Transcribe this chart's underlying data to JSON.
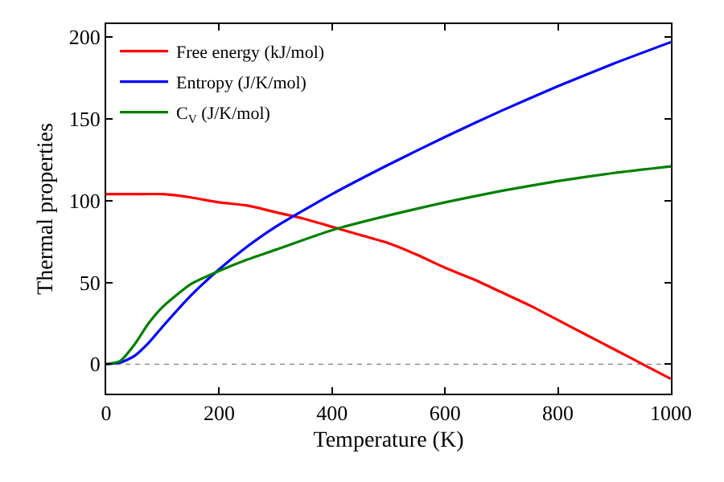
{
  "chart_data": {
    "type": "line",
    "xlabel": "Temperature (K)",
    "ylabel": "Thermal properties",
    "xlim": [
      0,
      1000
    ],
    "ylim": [
      -18,
      208
    ],
    "xticks": [
      0,
      200,
      400,
      600,
      800,
      1000
    ],
    "yticks": [
      0,
      50,
      100,
      150,
      200
    ],
    "grid": false,
    "legend": "top left",
    "line_style": "solid",
    "marker": "none",
    "series": [
      {
        "name": "Free energy (kJ/mol)",
        "color": "#ff0000",
        "x": [
          0,
          50,
          100,
          150,
          200,
          250,
          300,
          350,
          400,
          450,
          500,
          550,
          600,
          650,
          700,
          750,
          800,
          850,
          900,
          950,
          1000
        ],
        "values": [
          104,
          104,
          104,
          102,
          99,
          97,
          93,
          89,
          84,
          79,
          74,
          67,
          59,
          52,
          44,
          36,
          27,
          18,
          9,
          0,
          -9
        ]
      },
      {
        "name": "Entropy (J/K/mol)",
        "color": "#0000ff",
        "x": [
          0,
          25,
          50,
          75,
          100,
          150,
          200,
          250,
          300,
          400,
          500,
          600,
          700,
          800,
          900,
          1000
        ],
        "values": [
          0,
          1,
          5,
          13,
          23,
          42,
          58,
          72,
          84,
          104,
          122,
          139,
          155,
          170,
          184,
          197
        ]
      },
      {
        "name": "C$_{V}$ (J/K/mol)",
        "color": "#008000",
        "x": [
          0,
          25,
          50,
          75,
          100,
          150,
          200,
          250,
          300,
          400,
          500,
          600,
          700,
          800,
          900,
          1000
        ],
        "values": [
          0,
          2,
          12,
          25,
          35,
          49,
          57,
          64,
          70,
          82,
          91,
          99,
          106,
          112,
          117,
          121
        ]
      }
    ],
    "ref_lines": [
      {
        "axis": "y",
        "value": 0,
        "color": "#808080",
        "line_style": "dotted"
      }
    ]
  }
}
